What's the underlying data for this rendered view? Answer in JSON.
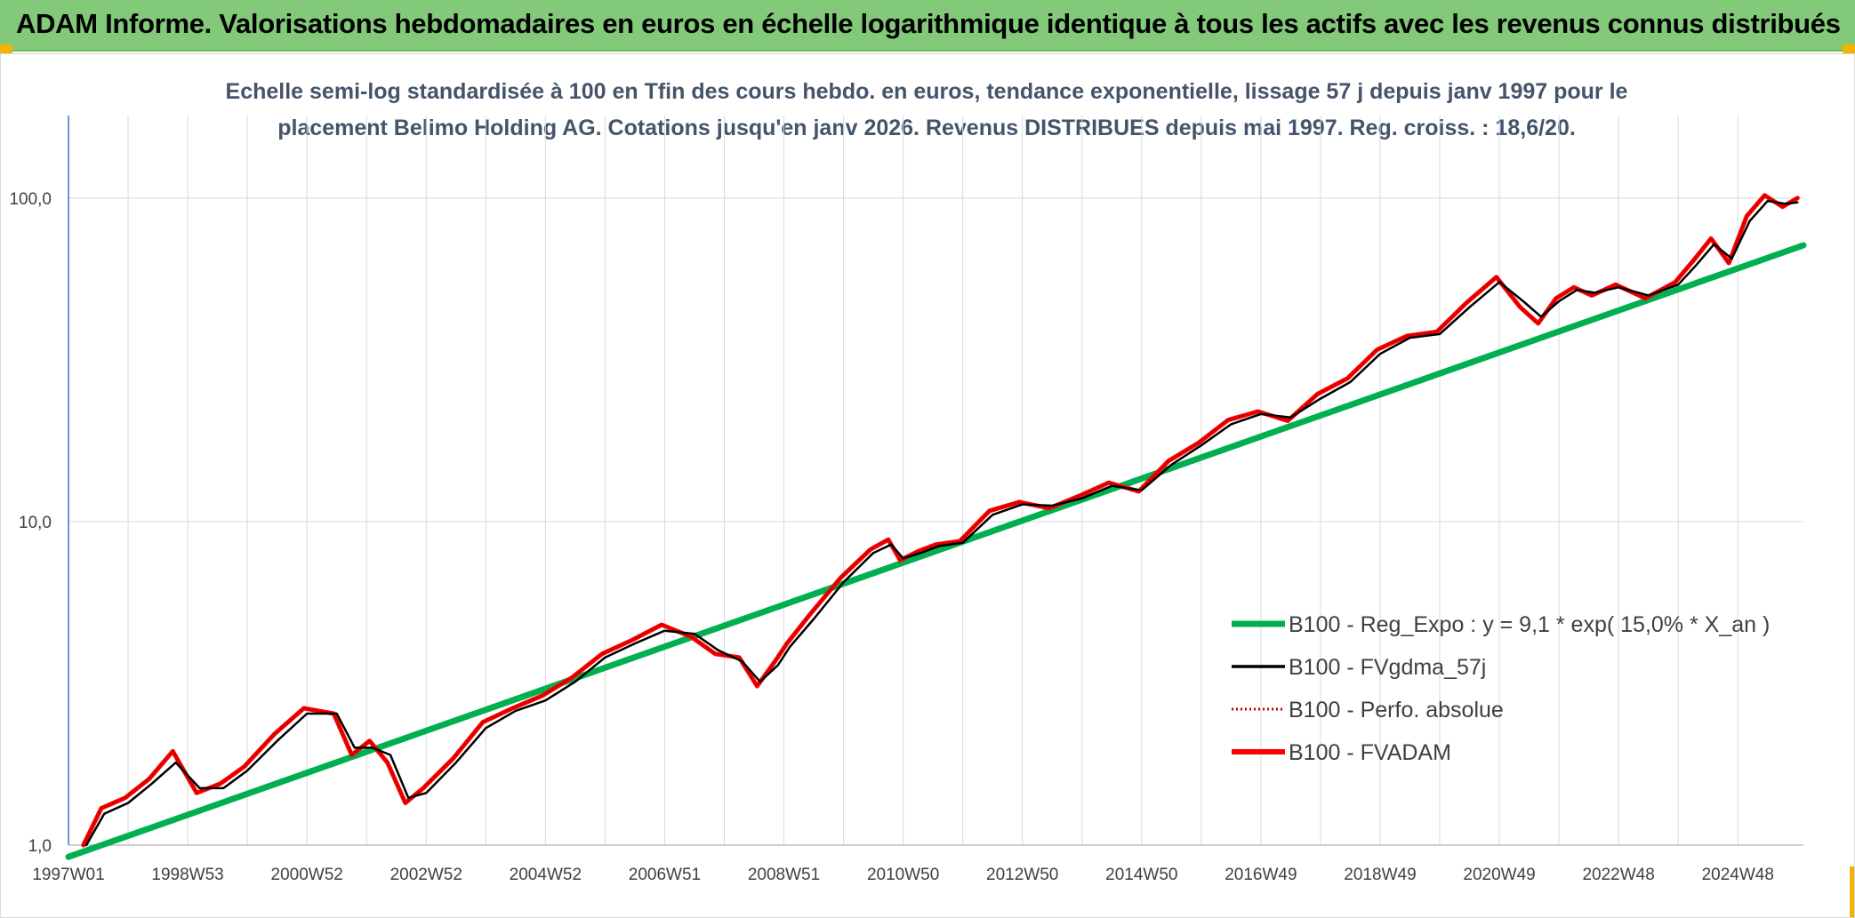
{
  "header": {
    "title": "ADAM Informe. Valorisations hebdomadaires en euros en échelle logarithmique identique à tous les actifs avec les revenus connus distribués"
  },
  "colors": {
    "header_bg": "#82c97a",
    "regression": "#00b050",
    "fvgdma": "#000000",
    "perfo": "#c00000",
    "fvadam": "#ff0000",
    "grid": "#d9d9d9",
    "subtitle": "#44546a"
  },
  "chart_data": {
    "type": "line",
    "title_lines": [
      "Echelle semi-log standardisée à 100 en Tfin des cours hebdo. en euros, tendance exponentielle, lissage 57 j depuis janv 1997 pour le",
      "placement Belimo Holding AG. Cotations jusqu'en janv 2026. Revenus DISTRIBUES depuis mai 1997. Reg. croiss. : 18,6/20."
    ],
    "y_scale": "log",
    "ylim": [
      1,
      180
    ],
    "y_ticks": [
      {
        "value": 1,
        "label": "1,0"
      },
      {
        "value": 10,
        "label": "10,0"
      },
      {
        "value": 100,
        "label": "100,0"
      }
    ],
    "xlim": [
      1997.0,
      2026.1
    ],
    "x_ticks": [
      {
        "value": 1997.0,
        "label": "1997W01"
      },
      {
        "value": 1999.0,
        "label": "1998W53"
      },
      {
        "value": 2001.0,
        "label": "2000W52"
      },
      {
        "value": 2003.0,
        "label": "2002W52"
      },
      {
        "value": 2005.0,
        "label": "2004W52"
      },
      {
        "value": 2007.0,
        "label": "2006W51"
      },
      {
        "value": 2009.0,
        "label": "2008W51"
      },
      {
        "value": 2011.0,
        "label": "2010W50"
      },
      {
        "value": 2013.0,
        "label": "2012W50"
      },
      {
        "value": 2015.0,
        "label": "2014W50"
      },
      {
        "value": 2017.0,
        "label": "2016W49"
      },
      {
        "value": 2019.0,
        "label": "2018W49"
      },
      {
        "value": 2021.0,
        "label": "2020W49"
      },
      {
        "value": 2023.0,
        "label": "2022W48"
      },
      {
        "value": 2025.0,
        "label": "2024W48"
      }
    ],
    "grid": true,
    "legend_position": "bottom-right",
    "series": [
      {
        "name": "B100 - Reg_Expo : y = 9,1 * exp( 15,0% *  X_an )",
        "key": "reg",
        "style": "thick-solid",
        "x": [
          1997.0,
          2026.1
        ],
        "y": [
          0.92,
          71.5
        ]
      },
      {
        "name": "B100 - FVgdma_57j",
        "key": "fvgdma",
        "style": "solid",
        "x": [
          1997.3,
          1997.6,
          1998.0,
          1998.4,
          1998.8,
          1999.2,
          1999.6,
          2000.0,
          2000.5,
          2001.0,
          2001.5,
          2001.8,
          2002.1,
          2002.4,
          2002.7,
          2003.0,
          2003.5,
          2004.0,
          2004.5,
          2005.0,
          2005.5,
          2006.0,
          2006.5,
          2007.0,
          2007.5,
          2007.9,
          2008.3,
          2008.6,
          2008.9,
          2009.1,
          2009.5,
          2010.0,
          2010.5,
          2010.8,
          2011.0,
          2011.3,
          2011.6,
          2012.0,
          2012.5,
          2013.0,
          2013.5,
          2014.0,
          2014.5,
          2015.0,
          2015.5,
          2016.0,
          2016.5,
          2017.0,
          2017.5,
          2018.0,
          2018.5,
          2019.0,
          2019.5,
          2020.0,
          2020.5,
          2021.0,
          2021.4,
          2021.7,
          2022.0,
          2022.3,
          2022.6,
          2023.0,
          2023.5,
          2024.0,
          2024.3,
          2024.6,
          2024.9,
          2025.2,
          2025.5,
          2025.8,
          2026.0
        ],
        "y": [
          1.0,
          1.25,
          1.35,
          1.55,
          1.8,
          1.5,
          1.5,
          1.7,
          2.1,
          2.55,
          2.55,
          2.0,
          2.0,
          1.9,
          1.4,
          1.45,
          1.8,
          2.3,
          2.6,
          2.8,
          3.2,
          3.8,
          4.2,
          4.6,
          4.5,
          4.0,
          3.7,
          3.2,
          3.6,
          4.1,
          5.0,
          6.5,
          8.0,
          8.5,
          7.7,
          8.0,
          8.4,
          8.6,
          10.5,
          11.3,
          11.2,
          11.8,
          12.9,
          12.5,
          15.0,
          17.2,
          20.0,
          21.5,
          21.0,
          24.0,
          27.0,
          33.0,
          37.0,
          38.0,
          46.0,
          55.0,
          48.0,
          43.0,
          48.0,
          52.0,
          51.0,
          53.0,
          50.0,
          54.0,
          62.0,
          72.0,
          65.0,
          85.0,
          98.0,
          96.0,
          97.0
        ]
      },
      {
        "name": "B100 - Perfo. absolue",
        "key": "perfo",
        "style": "dotted",
        "x": [
          1997.25,
          1997.55,
          1997.95,
          1998.35,
          1998.75,
          1999.15,
          1999.55,
          1999.95,
          2000.45,
          2000.95,
          2001.45,
          2001.75,
          2002.05,
          2002.35,
          2002.65,
          2002.95,
          2003.45,
          2003.95,
          2004.45,
          2004.95,
          2005.45,
          2005.95,
          2006.45,
          2006.95,
          2007.45,
          2007.85,
          2008.25,
          2008.55,
          2008.85,
          2009.05,
          2009.45,
          2009.95,
          2010.45,
          2010.75,
          2010.95,
          2011.25,
          2011.55,
          2011.95,
          2012.45,
          2012.95,
          2013.45,
          2013.95,
          2014.45,
          2014.95,
          2015.45,
          2015.95,
          2016.45,
          2016.95,
          2017.45,
          2017.95,
          2018.45,
          2018.95,
          2019.45,
          2019.95,
          2020.45,
          2020.95,
          2021.35,
          2021.65,
          2021.95,
          2022.25,
          2022.55,
          2022.95,
          2023.45,
          2023.95,
          2024.25,
          2024.55,
          2024.85,
          2025.15,
          2025.45,
          2025.75,
          2026.0
        ],
        "y": [
          1.0,
          1.3,
          1.4,
          1.6,
          1.95,
          1.45,
          1.55,
          1.75,
          2.2,
          2.65,
          2.55,
          1.9,
          2.1,
          1.8,
          1.35,
          1.5,
          1.85,
          2.4,
          2.65,
          2.9,
          3.3,
          3.9,
          4.3,
          4.8,
          4.4,
          3.9,
          3.8,
          3.1,
          3.7,
          4.2,
          5.2,
          6.7,
          8.2,
          8.8,
          7.6,
          8.1,
          8.5,
          8.7,
          10.8,
          11.5,
          11.0,
          12.0,
          13.2,
          12.4,
          15.4,
          17.5,
          20.6,
          21.9,
          20.5,
          24.8,
          27.7,
          34.0,
          37.5,
          38.6,
          47.5,
          57.0,
          46.0,
          41.0,
          49.0,
          53.0,
          50.0,
          54.0,
          49.0,
          55.0,
          64.0,
          75.0,
          63.0,
          88.0,
          102.0,
          94.0,
          100.0
        ]
      },
      {
        "name": "B100 - FVADAM",
        "key": "fvadam",
        "style": "thick-solid",
        "x": [
          1997.25,
          1997.55,
          1997.95,
          1998.35,
          1998.75,
          1999.15,
          1999.55,
          1999.95,
          2000.45,
          2000.95,
          2001.45,
          2001.75,
          2002.05,
          2002.35,
          2002.65,
          2002.95,
          2003.45,
          2003.95,
          2004.45,
          2004.95,
          2005.45,
          2005.95,
          2006.45,
          2006.95,
          2007.45,
          2007.85,
          2008.25,
          2008.55,
          2008.85,
          2009.05,
          2009.45,
          2009.95,
          2010.45,
          2010.75,
          2010.95,
          2011.25,
          2011.55,
          2011.95,
          2012.45,
          2012.95,
          2013.45,
          2013.95,
          2014.45,
          2014.95,
          2015.45,
          2015.95,
          2016.45,
          2016.95,
          2017.45,
          2017.95,
          2018.45,
          2018.95,
          2019.45,
          2019.95,
          2020.45,
          2020.95,
          2021.35,
          2021.65,
          2021.95,
          2022.25,
          2022.55,
          2022.95,
          2023.45,
          2023.95,
          2024.25,
          2024.55,
          2024.85,
          2025.15,
          2025.45,
          2025.75,
          2026.0
        ],
        "y": [
          1.0,
          1.3,
          1.4,
          1.6,
          1.95,
          1.45,
          1.55,
          1.75,
          2.2,
          2.65,
          2.55,
          1.9,
          2.1,
          1.8,
          1.35,
          1.5,
          1.85,
          2.4,
          2.65,
          2.9,
          3.3,
          3.9,
          4.3,
          4.8,
          4.4,
          3.9,
          3.8,
          3.1,
          3.7,
          4.2,
          5.2,
          6.7,
          8.2,
          8.8,
          7.6,
          8.1,
          8.5,
          8.7,
          10.8,
          11.5,
          11.0,
          12.0,
          13.2,
          12.4,
          15.4,
          17.5,
          20.6,
          21.9,
          20.5,
          24.8,
          27.7,
          34.0,
          37.5,
          38.6,
          47.5,
          57.0,
          46.0,
          41.0,
          49.0,
          53.0,
          50.0,
          54.0,
          49.0,
          55.0,
          64.0,
          75.0,
          63.0,
          88.0,
          102.0,
          94.0,
          100.0
        ]
      }
    ]
  }
}
